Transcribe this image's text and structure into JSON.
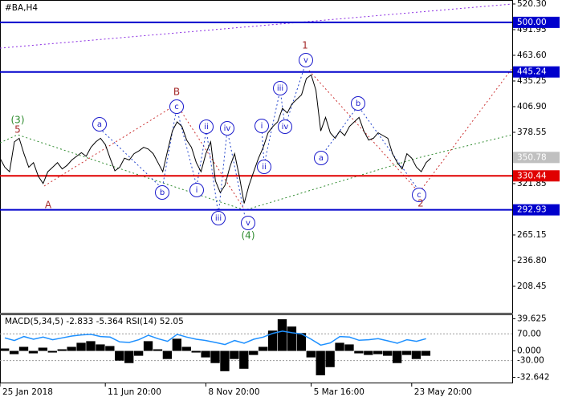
{
  "chart_data": [
    {
      "type": "line",
      "title": "#BA,H4",
      "color": "#000000",
      "values": [
        350,
        340,
        335,
        368,
        372,
        355,
        340,
        345,
        330,
        322,
        335,
        340,
        345,
        338,
        342,
        348,
        352,
        356,
        352,
        362,
        368,
        372,
        365,
        350,
        336,
        340,
        350,
        348,
        355,
        358,
        362,
        360,
        355,
        345,
        335,
        358,
        380,
        390,
        385,
        370,
        362,
        345,
        335,
        355,
        368,
        325,
        312,
        320,
        340,
        355,
        330,
        300,
        320,
        335,
        350,
        362,
        378,
        385,
        390,
        405,
        400,
        410,
        415,
        420,
        438,
        442,
        425,
        380,
        395,
        378,
        372,
        380,
        375,
        385,
        390,
        395,
        380,
        370,
        372,
        378,
        375,
        372,
        355,
        345,
        338,
        355,
        350,
        340,
        335,
        345,
        350
      ],
      "xlim": [
        0,
        107
      ],
      "xticks": [
        {
          "value": 0,
          "label": "25 Jan 2018"
        },
        {
          "value": 22,
          "label": "11 Jun 20:00"
        },
        {
          "value": 43,
          "label": "8 Nov 20:00"
        },
        {
          "value": 65,
          "label": "5 Mar 16:00"
        },
        {
          "value": 86,
          "label": "23 May 20:00"
        }
      ],
      "ylim": [
        179.2,
        524.7
      ],
      "yticks": [
        {
          "value": 520.3,
          "label": "520.30"
        },
        491.95,
        {
          "value": 463.6,
          "label": "463.60"
        },
        435.25,
        {
          "value": 406.9,
          "label": "406.90"
        },
        378.55,
        321.85,
        265.15,
        {
          "value": 236.8,
          "label": "236.80"
        },
        208.45
      ],
      "levels": [
        {
          "value": 500,
          "label": "500.00",
          "color": "#0000cc"
        },
        {
          "value": 445.24,
          "label": "445.24",
          "color": "#0000cc"
        },
        {
          "value": 330.44,
          "label": "330.44",
          "color": "#e00000"
        },
        {
          "value": 292.93,
          "label": "292.93",
          "color": "#0000cc"
        }
      ],
      "last_price": {
        "value": 350.78,
        "label": "350.78",
        "color": "#c0c0c0"
      },
      "wave_labels": [
        "(3)",
        "5",
        "A",
        "a",
        "b",
        "c",
        "B",
        "i",
        "ii",
        "iii",
        "iv",
        "v",
        "(4)",
        "i",
        "ii",
        "iii",
        "iv",
        "v",
        "1",
        "a",
        "b",
        "c",
        "2"
      ]
    },
    {
      "type": "bar",
      "title": "MACD(5,34,5) -2.833 -5.364 RSI(14) 52.05",
      "color": "#000000",
      "values": [
        3,
        -4,
        5,
        -3,
        4,
        -2,
        2,
        5,
        10,
        12,
        8,
        6,
        -12,
        -15,
        -6,
        12,
        2,
        -10,
        15,
        5,
        -2,
        -8,
        -15,
        -25,
        -10,
        -22,
        -5,
        5,
        25,
        39,
        30,
        22,
        -8,
        -30,
        -20,
        10,
        8,
        -3,
        -5,
        -4,
        -6,
        -15,
        -5,
        -10,
        -6
      ],
      "xlim": [
        0,
        53.5
      ],
      "ylim": [
        -39,
        45
      ],
      "yticks": [
        39.625,
        {
          "value": 0,
          "label": "0.000"
        },
        -32.642
      ],
      "rsi": {
        "color": "#1e90ff",
        "values": [
          55,
          45,
          60,
          50,
          58,
          48,
          55,
          62,
          66,
          68,
          60,
          58,
          40,
          38,
          48,
          65,
          52,
          42,
          68,
          58,
          50,
          45,
          38,
          30,
          45,
          35,
          50,
          58,
          72,
          80,
          74,
          70,
          50,
          28,
          36,
          60,
          58,
          46,
          48,
          52,
          44,
          35,
          48,
          42,
          52
        ],
        "ylim": [
          -111.8,
          142.7
        ],
        "yticks": [
          {
            "value": 70,
            "label": "70.00"
          },
          {
            "value": -30,
            "label": "-30.00"
          }
        ]
      }
    }
  ]
}
